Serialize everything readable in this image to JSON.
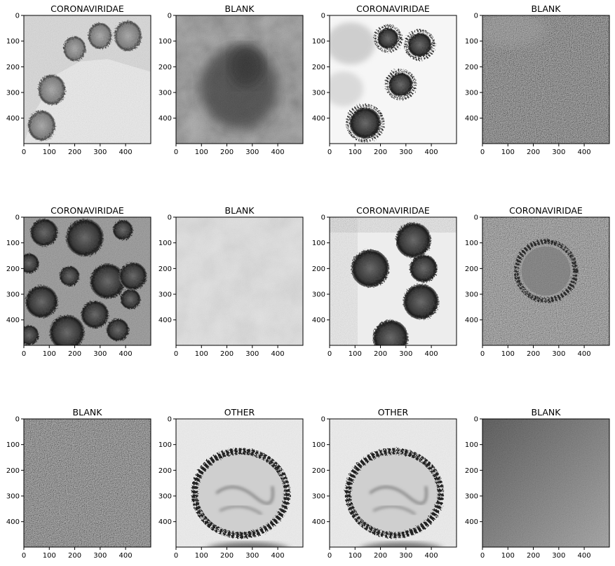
{
  "figure": {
    "panels": [
      {
        "title": "CORONAVIRIDAE",
        "image": "virions-on-membrane-edge"
      },
      {
        "title": "BLANK",
        "image": "dark-blotchy-background"
      },
      {
        "title": "CORONAVIRIDAE",
        "image": "four-virions-white-background"
      },
      {
        "title": "BLANK",
        "image": "uniform-noise"
      },
      {
        "title": "CORONAVIRIDAE",
        "image": "dense-cluster-of-virions"
      },
      {
        "title": "BLANK",
        "image": "pale-texture"
      },
      {
        "title": "CORONAVIRIDAE",
        "image": "three-virions-cluster"
      },
      {
        "title": "CORONAVIRIDAE",
        "image": "single-virion-with-corona-noisy"
      },
      {
        "title": "BLANK",
        "image": "uniform-noise-mid"
      },
      {
        "title": "OTHER",
        "image": "large-round-particle"
      },
      {
        "title": "OTHER",
        "image": "large-round-particle"
      },
      {
        "title": "BLANK",
        "image": "gradient-noise"
      }
    ],
    "x_ticks": [
      "0",
      "100",
      "200",
      "300",
      "400"
    ],
    "y_ticks": [
      "0",
      "100",
      "200",
      "300",
      "400"
    ],
    "axis_range": [
      0,
      499
    ]
  }
}
